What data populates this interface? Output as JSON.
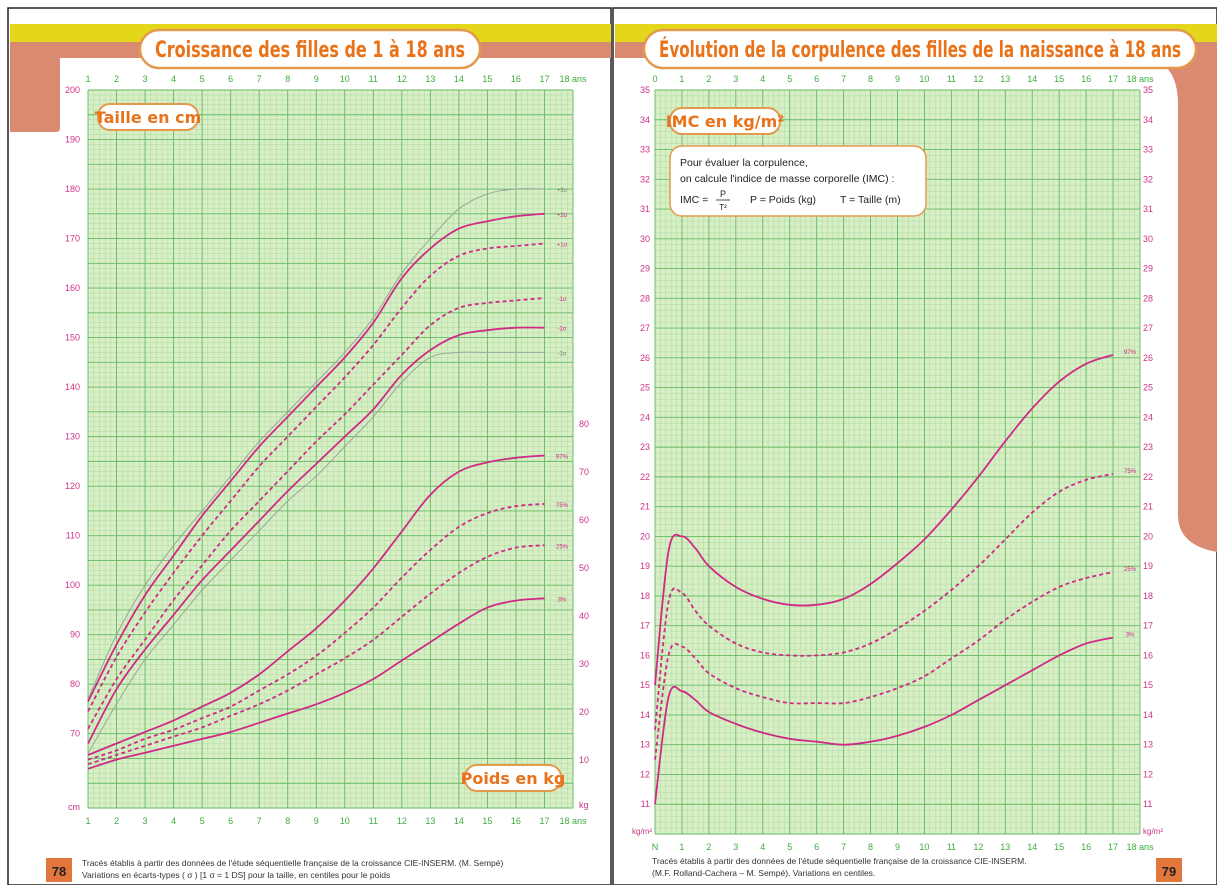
{
  "colors": {
    "accent": "#e4d61a",
    "salmon": "#d98a70",
    "title_text": "#e8731b",
    "title_border": "#e39a4d",
    "axis_green": "#3cab3c",
    "grid_major": "#63b963",
    "grid_minor": "#b4dca6",
    "chart_bg": "#d8efc6",
    "curve_pink": "#cf2a86",
    "tick_pink": "#cc3485",
    "grey_curve": "#9aa79a",
    "page_num_bg": "#e2763c"
  },
  "left_page": {
    "title": "Croissance des filles de 1 à 18 ans",
    "label_taille": "Taille en cm",
    "label_poids": "Poids en kg",
    "x_ticks": [
      "1",
      "2",
      "3",
      "4",
      "5",
      "6",
      "7",
      "8",
      "9",
      "10",
      "11",
      "12",
      "13",
      "14",
      "15",
      "16",
      "17",
      "18 ans"
    ],
    "y_height_ticks": [
      "200",
      "190",
      "180",
      "170",
      "160",
      "150",
      "140",
      "130",
      "120",
      "110",
      "100",
      "90",
      "80",
      "70"
    ],
    "y_height_unit": "cm",
    "y_weight_ticks": [
      "80",
      "70",
      "60",
      "50",
      "40",
      "30",
      "20",
      "10"
    ],
    "y_weight_unit": "kg",
    "footnote_line1": "Tracés établis à partir des données de l'étude séquentielle française de la croissance CIE-INSERM. (M. Sempé)",
    "footnote_line2": "Variations en écarts-types ( σ ) [1 σ = 1 DS] pour la taille, en centiles pour le poids",
    "page_number": "78"
  },
  "right_page": {
    "title": "Évolution de la corpulence des filles de la naissance à 18 ans",
    "label_imc": "IMC en kg/m²",
    "info_line1": "Pour évaluer la corpulence,",
    "info_line2": "on calcule l'indice de masse corporelle (IMC) :",
    "info_formula_lhs": "IMC =",
    "info_frac_num": "P",
    "info_frac_den": "T²",
    "info_p_def": "P = Poids (kg)",
    "info_t_def": "T = Taille (m)",
    "x_ticks": [
      "0",
      "1",
      "2",
      "3",
      "4",
      "5",
      "6",
      "7",
      "8",
      "9",
      "10",
      "11",
      "12",
      "13",
      "14",
      "15",
      "16",
      "17",
      "18 ans"
    ],
    "x_ticks_bottom": [
      "N",
      "1",
      "2",
      "3",
      "4",
      "5",
      "6",
      "7",
      "8",
      "9",
      "10",
      "11",
      "12",
      "13",
      "14",
      "15",
      "16",
      "17",
      "18 ans"
    ],
    "y_ticks": [
      "35",
      "34",
      "33",
      "32",
      "31",
      "30",
      "29",
      "28",
      "27",
      "26",
      "25",
      "24",
      "23",
      "22",
      "21",
      "20",
      "19",
      "18",
      "17",
      "16",
      "15",
      "14",
      "13",
      "12",
      "11"
    ],
    "y_unit": "kg/m²",
    "footnote_line1": "Tracés établis à partir des données de l'étude séquentielle française de la croissance CIE-INSERM.",
    "footnote_line2": "(M.F. Rolland-Cachera – M. Sempé). Variations en centiles.",
    "page_number": "79"
  },
  "chart_data": [
    {
      "type": "line",
      "title": "Croissance des filles de 1 à 18 ans",
      "xlabel": "",
      "ylabel": "Taille en cm",
      "x": [
        1,
        2,
        3,
        4,
        5,
        6,
        7,
        8,
        9,
        10,
        11,
        12,
        13,
        14,
        15,
        16,
        17,
        18
      ],
      "xlim": [
        1,
        18
      ],
      "ylim": [
        55,
        200
      ],
      "series": [
        {
          "name": "+3σ",
          "style": "grey",
          "values": [
            77,
            90,
            100,
            108,
            115,
            122,
            129,
            135,
            141,
            147,
            154,
            163,
            170,
            176,
            179,
            180,
            180,
            180
          ]
        },
        {
          "name": "+2σ",
          "style": "solid",
          "values": [
            76.5,
            88,
            98,
            106,
            114,
            121,
            128,
            134,
            140,
            146,
            153,
            162,
            168,
            172,
            173.5,
            174.5,
            175,
            175
          ]
        },
        {
          "name": "+1σ",
          "style": "dashed",
          "values": [
            74.5,
            85.5,
            94.5,
            102.5,
            110,
            117,
            124,
            130,
            136,
            142,
            148.5,
            156,
            162.5,
            166.5,
            168,
            168.5,
            169,
            169
          ]
        },
        {
          "name": "-1σ",
          "style": "dashed",
          "values": [
            71,
            81,
            89,
            97,
            104,
            111,
            117,
            123,
            129,
            134.5,
            140.5,
            146.5,
            152.5,
            156,
            157,
            157.5,
            158,
            158
          ]
        },
        {
          "name": "-2σ",
          "style": "solid",
          "values": [
            68,
            79,
            87,
            94,
            101,
            107,
            113,
            119,
            124.5,
            130,
            135.5,
            142.5,
            147.5,
            150.5,
            151.5,
            152,
            152,
            152
          ]
        },
        {
          "name": "-3σ",
          "style": "grey",
          "values": [
            66,
            76,
            85,
            92,
            99,
            105,
            111,
            117,
            122,
            128,
            134,
            141,
            146,
            147,
            147,
            147,
            147,
            147
          ]
        }
      ],
      "y2label": "Poids en kg",
      "y2lim": [
        0,
        90
      ],
      "series_weight": [
        {
          "name": "97%",
          "style": "solid",
          "values": [
            11.5,
            14,
            16.5,
            19,
            22,
            25,
            29,
            34,
            39,
            45,
            52,
            60,
            68,
            73,
            75,
            76,
            76.5,
            76.5
          ]
        },
        {
          "name": "75%",
          "style": "dashed",
          "values": [
            10.5,
            12.5,
            15,
            17,
            19.5,
            22,
            25.5,
            29,
            33,
            38,
            43.5,
            50,
            56,
            61,
            64,
            65.5,
            66,
            66
          ]
        },
        {
          "name": "25%",
          "style": "dashed",
          "values": [
            9.5,
            11.5,
            13.5,
            15.5,
            17.5,
            20,
            22.5,
            25.5,
            29,
            32.5,
            36.5,
            41.5,
            46.5,
            51,
            54.5,
            56.5,
            57,
            57
          ]
        },
        {
          "name": "3%",
          "style": "solid",
          "values": [
            8.5,
            10.5,
            12,
            13.5,
            15,
            16.5,
            18.5,
            20.5,
            22.5,
            25,
            28,
            32,
            36,
            40,
            43.5,
            45,
            45.5,
            45.5
          ]
        }
      ]
    },
    {
      "type": "line",
      "title": "Évolution de la corpulence des filles de la naissance à 18 ans",
      "xlabel": "",
      "ylabel": "IMC en kg/m²",
      "xlim": [
        0,
        18
      ],
      "ylim": [
        10.5,
        35
      ],
      "series": [
        {
          "name": "97%",
          "style": "solid",
          "x": [
            0,
            0.5,
            1,
            1.5,
            2,
            3,
            4,
            5,
            6,
            7,
            8,
            9,
            10,
            11,
            12,
            13,
            14,
            15,
            16,
            17,
            18
          ],
          "values": [
            15,
            19.5,
            20,
            19.6,
            19,
            18.3,
            17.9,
            17.7,
            17.7,
            17.9,
            18.4,
            19.1,
            19.9,
            20.9,
            22,
            23.2,
            24.3,
            25.2,
            25.8,
            26.1,
            26.2
          ]
        },
        {
          "name": "75%",
          "style": "dashed",
          "x": [
            0,
            0.5,
            1,
            1.5,
            2,
            3,
            4,
            5,
            6,
            7,
            8,
            9,
            10,
            11,
            12,
            13,
            14,
            15,
            16,
            17,
            18
          ],
          "values": [
            13.5,
            17.8,
            18.1,
            17.5,
            17,
            16.4,
            16.1,
            16,
            16,
            16.1,
            16.4,
            16.9,
            17.5,
            18.2,
            19,
            19.9,
            20.8,
            21.5,
            21.9,
            22.1,
            22.2
          ]
        },
        {
          "name": "25%",
          "style": "dashed",
          "x": [
            0,
            0.5,
            1,
            1.5,
            2,
            3,
            4,
            5,
            6,
            7,
            8,
            9,
            10,
            11,
            12,
            13,
            14,
            15,
            16,
            17,
            18
          ],
          "values": [
            12.5,
            16,
            16.3,
            15.9,
            15.4,
            14.9,
            14.6,
            14.4,
            14.4,
            14.4,
            14.6,
            14.9,
            15.3,
            15.9,
            16.5,
            17.2,
            17.8,
            18.3,
            18.6,
            18.8,
            18.9
          ]
        },
        {
          "name": "3%",
          "style": "solid",
          "x": [
            0,
            0.5,
            1,
            1.5,
            2,
            3,
            4,
            5,
            6,
            7,
            8,
            9,
            10,
            11,
            12,
            13,
            14,
            15,
            16,
            17,
            18
          ],
          "values": [
            11,
            14.6,
            14.8,
            14.5,
            14.1,
            13.7,
            13.4,
            13.2,
            13.1,
            13.0,
            13.1,
            13.3,
            13.6,
            14,
            14.5,
            15,
            15.5,
            16,
            16.4,
            16.6,
            16.7
          ]
        }
      ]
    }
  ]
}
